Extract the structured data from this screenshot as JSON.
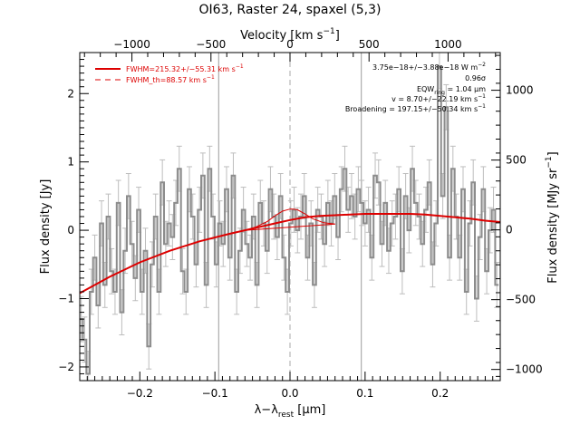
{
  "chart_data": {
    "type": "line",
    "title": "OI63, Raster 24, spaxel (5,3)",
    "xlabel": "λ−λ",
    "xlabel_sub": "rest",
    "xlabel_unit": " [μm]",
    "ylabel": "Flux density [Jy]",
    "top_axis_label": "Velocity [km s",
    "top_axis_unit_sup": "−1",
    "top_axis_label_end": "]",
    "right_axis_label": "Flux density [MJy sr",
    "right_axis_unit_sup": "−1",
    "right_axis_label_end": "]",
    "xlim": [
      -0.28,
      0.28
    ],
    "ylim": [
      -2.2,
      2.6
    ],
    "velocity_lim": [
      -1330,
      1330
    ],
    "right_lim": [
      -1080,
      1270
    ],
    "x_ticks": [
      -0.2,
      -0.1,
      0.0,
      0.1,
      0.2
    ],
    "x_tick_labels": [
      "−0.2",
      "−0.1",
      "0.0",
      "0.1",
      "0.2"
    ],
    "y_ticks": [
      -2,
      -1,
      0,
      1,
      2
    ],
    "y_tick_labels": [
      "−2",
      "−1",
      "0",
      "1",
      "2"
    ],
    "velocity_ticks": [
      -1000,
      -500,
      0,
      500,
      1000
    ],
    "velocity_tick_labels": [
      "−1000",
      "−500",
      "0",
      "500",
      "1000"
    ],
    "right_ticks": [
      -1000,
      -500,
      0,
      500,
      1000
    ],
    "right_tick_labels": [
      "−1000",
      "−500",
      "0",
      "500",
      "1000"
    ],
    "vertical_lines": [
      -0.095,
      0.095
    ],
    "center_dashed_line": 0.0,
    "legend": {
      "placement": "top-left",
      "entries": [
        {
          "label": "FWHM=215.32+/−55.31 km s",
          "sup": "−1",
          "style": "solid"
        },
        {
          "label": "FWHM_th=88.57 km s",
          "sup": "−1",
          "style": "dashed"
        }
      ]
    },
    "annotations": {
      "flux_text": "3.75e−18+/−3.88e−18 W m",
      "flux_sup": "−2",
      "sigma": "0.96σ",
      "eqw_pre": "EQW",
      "eqw_sub": "ring",
      "eqw_post": " = 1.04 μm",
      "velocity": "v = 8.70+/−22.19 km s",
      "velocity_sup": "−1",
      "broadening": "Broadening = 197.15+/−50.34 km s",
      "broadening_sup": "−1"
    },
    "colors": {
      "data": "#8c8c8c",
      "error": "#bdbdbd",
      "fit": "#dd0000",
      "vline": "#9a9a9a"
    },
    "series": [
      {
        "name": "data",
        "style": "steps",
        "x": [
          -0.278,
          -0.2735,
          -0.269,
          -0.2645,
          -0.26,
          -0.2555,
          -0.251,
          -0.2465,
          -0.242,
          -0.2375,
          -0.233,
          -0.2285,
          -0.224,
          -0.2195,
          -0.215,
          -0.2105,
          -0.206,
          -0.2015,
          -0.197,
          -0.1925,
          -0.188,
          -0.1835,
          -0.179,
          -0.1745,
          -0.17,
          -0.1655,
          -0.161,
          -0.1565,
          -0.152,
          -0.1475,
          -0.143,
          -0.1385,
          -0.134,
          -0.1295,
          -0.125,
          -0.1205,
          -0.116,
          -0.1115,
          -0.107,
          -0.1025,
          -0.098,
          -0.0935,
          -0.089,
          -0.0845,
          -0.08,
          -0.0755,
          -0.071,
          -0.0665,
          -0.062,
          -0.0575,
          -0.053,
          -0.0485,
          -0.044,
          -0.0395,
          -0.035,
          -0.0305,
          -0.026,
          -0.0215,
          -0.017,
          -0.0125,
          -0.008,
          -0.0035,
          0.001,
          0.0055,
          0.01,
          0.0145,
          0.019,
          0.0235,
          0.028,
          0.0325,
          0.037,
          0.0415,
          0.046,
          0.0505,
          0.055,
          0.0595,
          0.064,
          0.0685,
          0.073,
          0.0775,
          0.082,
          0.0865,
          0.091,
          0.0955,
          0.1,
          0.1045,
          0.109,
          0.1135,
          0.118,
          0.1225,
          0.127,
          0.1315,
          0.136,
          0.1405,
          0.145,
          0.1495,
          0.154,
          0.1585,
          0.163,
          0.1675,
          0.172,
          0.1765,
          0.181,
          0.1855,
          0.19,
          0.1945,
          0.199,
          0.2035,
          0.208,
          0.2125,
          0.217,
          0.2215,
          0.226,
          0.2305,
          0.235,
          0.2395,
          0.244,
          0.2485,
          0.253,
          0.2575,
          0.262,
          0.2665,
          0.271,
          0.2755
        ],
        "y": [
          -1.3,
          -1.6,
          -2.1,
          -0.9,
          -0.4,
          -1.1,
          0.1,
          -0.8,
          0.2,
          -0.6,
          -0.9,
          0.4,
          -1.2,
          -0.3,
          0.5,
          -0.2,
          -0.7,
          0.3,
          -0.9,
          -0.3,
          -1.7,
          -0.5,
          0.2,
          -0.9,
          0.7,
          -0.2,
          0.1,
          -0.1,
          0.4,
          0.9,
          -0.6,
          -0.9,
          0.6,
          0.2,
          -0.5,
          0.3,
          0.8,
          -0.8,
          0.9,
          0.2,
          -0.5,
          0.1,
          -0.2,
          0.6,
          -0.4,
          0.8,
          -0.9,
          -0.3,
          0.3,
          -0.2,
          -0.4,
          0.2,
          -0.8,
          0.4,
          0.1,
          -0.3,
          0.6,
          0.2,
          -0.1,
          0.5,
          -0.4,
          -0.9,
          0.1,
          0.3,
          0.0,
          0.2,
          0.5,
          -0.4,
          0.1,
          -0.8,
          0.3,
          0.2,
          -0.2,
          0.4,
          0.1,
          0.5,
          -0.1,
          0.6,
          0.9,
          0.3,
          0.5,
          0.2,
          0.6,
          0.4,
          0.1,
          0.3,
          -0.4,
          0.8,
          0.7,
          -0.2,
          0.4,
          -0.3,
          0.1,
          0.2,
          0.6,
          -0.6,
          0.5,
          0.0,
          0.9,
          0.4,
          0.2,
          -0.2,
          0.3,
          0.7,
          -0.5,
          0.1,
          2.4,
          0.5,
          1.8,
          -0.4,
          0.9,
          0.2,
          -0.4,
          0.6,
          -0.9,
          0.1,
          0.7,
          -1.0,
          -0.1,
          0.6,
          -0.6,
          0.0,
          0.3,
          -0.8
        ],
        "y_err": 0.33
      },
      {
        "name": "fit",
        "style": "smooth",
        "x": [
          -0.28,
          -0.24,
          -0.2,
          -0.16,
          -0.12,
          -0.08,
          -0.04,
          -0.02,
          0.0,
          0.02,
          0.04,
          0.06,
          0.08,
          0.1,
          0.12,
          0.14,
          0.16,
          0.18,
          0.2,
          0.22,
          0.24,
          0.26,
          0.28
        ],
        "y": [
          -0.92,
          -0.68,
          -0.47,
          -0.3,
          -0.16,
          -0.05,
          0.05,
          0.1,
          0.15,
          0.19,
          0.21,
          0.22,
          0.23,
          0.24,
          0.24,
          0.24,
          0.24,
          0.23,
          0.21,
          0.19,
          0.17,
          0.14,
          0.12
        ]
      },
      {
        "name": "gaussian",
        "style": "smooth",
        "x": [
          -0.06,
          -0.045,
          -0.03,
          -0.02,
          -0.01,
          0.0,
          0.005,
          0.01,
          0.02,
          0.03,
          0.045,
          0.06
        ],
        "y": [
          0.0,
          0.05,
          0.13,
          0.21,
          0.28,
          0.31,
          0.31,
          0.3,
          0.24,
          0.17,
          0.11,
          0.09
        ]
      },
      {
        "name": "gaussian_baseline",
        "style": "line",
        "x": [
          -0.06,
          0.06
        ],
        "y": [
          0.0,
          0.09
        ]
      }
    ]
  }
}
